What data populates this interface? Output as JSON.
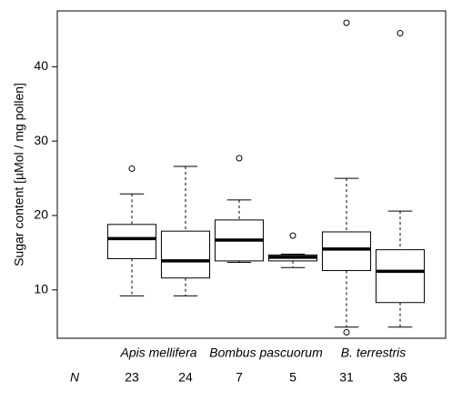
{
  "chart_data": {
    "type": "box",
    "y_label": "Sugar content [µMol / mg pollen]",
    "groups": [
      "Apis mellifera",
      "Bombus pascuorum",
      "B. terrestris"
    ],
    "n_label": "N",
    "n": [
      23,
      24,
      7,
      5,
      31,
      36
    ],
    "boxes": [
      {
        "whisker_low": 9.2,
        "q1": 14.2,
        "median": 16.9,
        "q3": 18.8,
        "whisker_high": 22.9,
        "outliers": [
          26.3
        ]
      },
      {
        "whisker_low": 9.2,
        "q1": 11.6,
        "median": 13.9,
        "q3": 17.9,
        "whisker_high": 26.6,
        "outliers": []
      },
      {
        "whisker_low": 13.7,
        "q1": 13.9,
        "median": 16.7,
        "q3": 19.4,
        "whisker_high": 22.1,
        "outliers": [
          27.7
        ]
      },
      {
        "whisker_low": 13.0,
        "q1": 13.9,
        "median": 14.4,
        "q3": 14.7,
        "whisker_high": 14.8,
        "outliers": [
          17.3
        ]
      },
      {
        "whisker_low": 5.0,
        "q1": 12.6,
        "median": 15.5,
        "q3": 17.8,
        "whisker_high": 25.0,
        "outliers": [
          4.3,
          45.9
        ]
      },
      {
        "whisker_low": 5.0,
        "q1": 8.3,
        "median": 12.5,
        "q3": 15.4,
        "whisker_high": 20.6,
        "outliers": [
          44.5
        ]
      }
    ],
    "color": "#000000",
    "ylim": [
      3.5,
      47.5
    ],
    "yticks": [
      10,
      20,
      30,
      40
    ]
  }
}
